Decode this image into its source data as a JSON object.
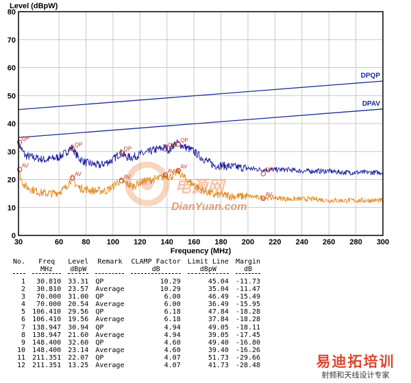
{
  "chart_data": {
    "type": "line",
    "ylabel": "Level (dBpW)",
    "xlabel": "Frequency (MHz)",
    "xlim": [
      30,
      300
    ],
    "ylim": [
      0,
      80
    ],
    "xticks": [
      30,
      60,
      80,
      100,
      120,
      140,
      160,
      180,
      200,
      220,
      240,
      260,
      280,
      300
    ],
    "yticks": [
      0,
      10,
      20,
      30,
      40,
      50,
      60,
      70,
      80
    ],
    "grid": true,
    "series": [
      {
        "name": "DPQP",
        "kind": "limit",
        "color": "#1a2a9a",
        "x": [
          30,
          300
        ],
        "y": [
          45.0,
          55.2
        ]
      },
      {
        "name": "DPAV",
        "kind": "limit",
        "color": "#1a2a9a",
        "x": [
          30,
          300
        ],
        "y": [
          35.0,
          45.2
        ]
      },
      {
        "kind": "measurement",
        "color": "#1a1aa0",
        "x": [
          30,
          32,
          35,
          40,
          45,
          50,
          55,
          60,
          65,
          68,
          70,
          72,
          75,
          80,
          85,
          90,
          95,
          100,
          103,
          106,
          110,
          115,
          120,
          125,
          130,
          135,
          139,
          142,
          145,
          148,
          152,
          156,
          160,
          165,
          170,
          175,
          180,
          190,
          200,
          210,
          220,
          230,
          240,
          250,
          260,
          270,
          280,
          290,
          300
        ],
        "y": [
          33.0,
          31.0,
          28.5,
          28.0,
          27.5,
          27.0,
          27.5,
          28.0,
          29.5,
          31.0,
          31.5,
          29.5,
          27.5,
          26.0,
          25.5,
          25.0,
          26.0,
          27.0,
          28.5,
          29.5,
          28.0,
          28.0,
          29.0,
          29.5,
          30.5,
          31.0,
          31.5,
          30.5,
          32.5,
          33.0,
          32.0,
          31.0,
          30.0,
          28.0,
          26.5,
          25.0,
          25.0,
          24.5,
          24.0,
          23.5,
          23.5,
          23.5,
          23.0,
          23.0,
          23.0,
          22.5,
          22.5,
          22.5,
          22.5
        ]
      },
      {
        "kind": "measurement",
        "color": "#e08a1e",
        "x": [
          30,
          32,
          35,
          40,
          45,
          50,
          55,
          60,
          65,
          68,
          70,
          72,
          75,
          80,
          85,
          90,
          95,
          100,
          103,
          106,
          110,
          115,
          120,
          125,
          130,
          135,
          139,
          142,
          145,
          148,
          152,
          156,
          160,
          165,
          170,
          175,
          180,
          190,
          200,
          210,
          220,
          230,
          240,
          250,
          260,
          270,
          280,
          290,
          300
        ],
        "y": [
          23.5,
          20.0,
          17.5,
          16.5,
          15.5,
          15.0,
          15.0,
          15.5,
          17.0,
          19.5,
          20.5,
          18.5,
          17.0,
          16.5,
          16.0,
          16.0,
          16.0,
          17.5,
          19.0,
          19.5,
          18.5,
          17.5,
          19.0,
          19.5,
          20.0,
          20.5,
          21.5,
          21.0,
          21.5,
          23.0,
          21.0,
          19.5,
          18.0,
          16.5,
          15.5,
          14.5,
          14.5,
          14.0,
          14.0,
          13.5,
          13.5,
          13.0,
          13.0,
          13.0,
          12.5,
          12.5,
          12.5,
          12.5,
          12.5
        ]
      }
    ],
    "markers": [
      {
        "x": 30.81,
        "y": 33.31,
        "label": "QP"
      },
      {
        "x": 30.81,
        "y": 23.57,
        "label": "AV"
      },
      {
        "x": 70.0,
        "y": 31.0,
        "label": "QP"
      },
      {
        "x": 70.0,
        "y": 20.54,
        "label": "AV"
      },
      {
        "x": 106.41,
        "y": 29.56,
        "label": "QP"
      },
      {
        "x": 106.41,
        "y": 19.56,
        "label": "AV"
      },
      {
        "x": 138.947,
        "y": 30.94,
        "label": "QP"
      },
      {
        "x": 138.947,
        "y": 21.6,
        "label": "AV"
      },
      {
        "x": 148.4,
        "y": 32.6,
        "label": "QP"
      },
      {
        "x": 148.4,
        "y": 23.14,
        "label": "AV"
      },
      {
        "x": 211.351,
        "y": 22.07,
        "label": "QP"
      },
      {
        "x": 211.351,
        "y": 13.25,
        "label": "AV"
      }
    ]
  },
  "table": {
    "headers": [
      {
        "line1": "No.",
        "line2": ""
      },
      {
        "line1": "Freq",
        "line2": "MHz"
      },
      {
        "line1": "Level",
        "line2": "dBpW"
      },
      {
        "line1": "Remark",
        "line2": ""
      },
      {
        "line1": "CLAMP Factor",
        "line2": "dB"
      },
      {
        "line1": "Limit Line",
        "line2": "dBpW"
      },
      {
        "line1": "Margin",
        "line2": "dB"
      }
    ],
    "rows": [
      [
        "1",
        "30.810",
        "33.31",
        "QP",
        "10.29",
        "45.04",
        "-11.73"
      ],
      [
        "2",
        "30.810",
        "23.57",
        "Average",
        "10.29",
        "35.04",
        "-11.47"
      ],
      [
        "3",
        "70.000",
        "31.00",
        "QP",
        "6.00",
        "46.49",
        "-15.49"
      ],
      [
        "4",
        "70.000",
        "20.54",
        "Average",
        "6.00",
        "36.49",
        "-15.95"
      ],
      [
        "5",
        "106.410",
        "29.56",
        "QP",
        "6.18",
        "47.84",
        "-18.28"
      ],
      [
        "6",
        "106.410",
        "19.56",
        "Average",
        "6.18",
        "37.84",
        "-18.28"
      ],
      [
        "7",
        "138.947",
        "30.94",
        "QP",
        "4.94",
        "49.05",
        "-18.11"
      ],
      [
        "8",
        "138.947",
        "21.60",
        "Average",
        "4.94",
        "39.05",
        "-17.45"
      ],
      [
        "9",
        "148.400",
        "32.60",
        "QP",
        "4.60",
        "49.40",
        "-16.80"
      ],
      [
        "10",
        "148.400",
        "23.14",
        "Average",
        "4.60",
        "39.40",
        "-16.26"
      ],
      [
        "11",
        "211.351",
        "22.07",
        "QP",
        "4.07",
        "51.73",
        "-29.66"
      ],
      [
        "12",
        "211.351",
        "13.25",
        "Average",
        "4.07",
        "41.73",
        "-28.48"
      ]
    ]
  },
  "watermark": {
    "line1": "电源网",
    "line2": "DianYuan.com"
  },
  "brand": {
    "line1": "易迪拓培训",
    "line2": "射频和天线设计专家"
  }
}
